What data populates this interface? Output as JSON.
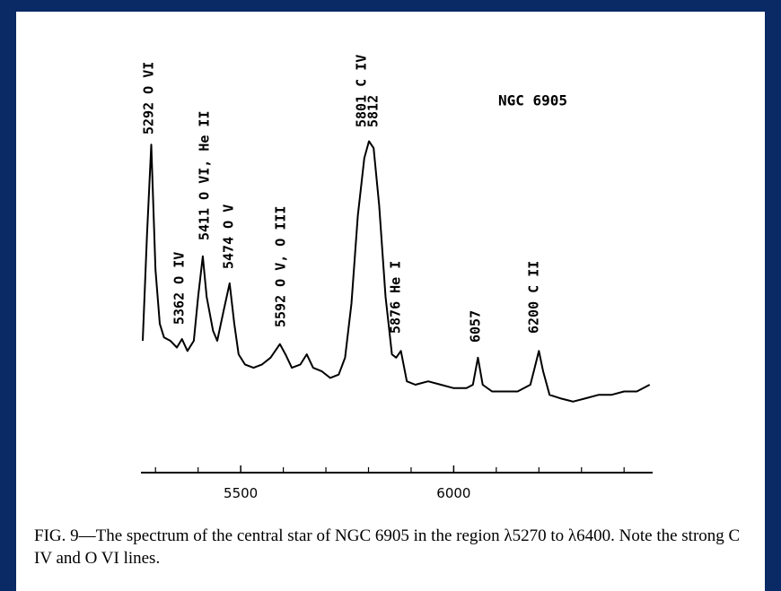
{
  "chart_data": {
    "type": "line",
    "label": "NGC 6905",
    "annotations": [
      "5292 O VI",
      "5362 O IV",
      "5411 O VI, He II",
      "5474 O V",
      "5592 O V, O III",
      "5801 C IV",
      "5812",
      "5876 He I",
      "6057",
      "6200 C II"
    ],
    "caption": "FIG. 9—The spectrum of the central star of NGC 6905 in the region λ5270 to λ6400. Note the strong C IV and O VI lines.",
    "x": [
      5270,
      5280,
      5290,
      5300,
      5310,
      5320,
      5335,
      5350,
      5362,
      5375,
      5390,
      5400,
      5411,
      5420,
      5435,
      5445,
      5460,
      5474,
      5485,
      5495,
      5510,
      5530,
      5550,
      5570,
      5592,
      5605,
      5620,
      5640,
      5655,
      5670,
      5690,
      5710,
      5730,
      5745,
      5760,
      5775,
      5790,
      5801,
      5812,
      5825,
      5840,
      5855,
      5865,
      5876,
      5890,
      5910,
      5940,
      5970,
      6000,
      6030,
      6045,
      6057,
      6068,
      6090,
      6120,
      6150,
      6180,
      6190,
      6200,
      6210,
      6225,
      6250,
      6280,
      6310,
      6340,
      6370,
      6400,
      6430,
      6460
    ],
    "series": [
      {
        "color": "#000000",
        "values": [
          39,
          70,
          97,
          60,
          44,
          40,
          39,
          37,
          39.5,
          36,
          39,
          52,
          64,
          52,
          42,
          39,
          48,
          56,
          44,
          35,
          32,
          31,
          32,
          34,
          38,
          35,
          31,
          32,
          35,
          31,
          30,
          28,
          29,
          34,
          50,
          76,
          93,
          98,
          96,
          79,
          52,
          35,
          34,
          36,
          27,
          26,
          27,
          26,
          25,
          25,
          26,
          34,
          26,
          24,
          24,
          24,
          26,
          31,
          36,
          30,
          23,
          22,
          21,
          22,
          23,
          23,
          24,
          24,
          26
        ]
      }
    ],
    "xlim": [
      5270,
      6467
    ],
    "ylim": [
      0,
      100
    ],
    "xticks": [
      5500,
      6000
    ],
    "xminor_ticks": [
      5300,
      5400,
      5600,
      5700,
      5800,
      5900,
      6100,
      6200,
      6300,
      6400
    ]
  }
}
